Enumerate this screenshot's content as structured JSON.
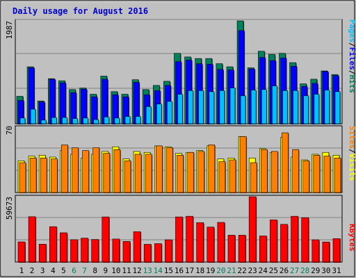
{
  "title": "Daily usage for August 2016",
  "colors": {
    "background": "#C0C0C0",
    "plot_bg": "#C0C0C0",
    "title": "#0000CC",
    "hits": "#00805C",
    "files": "#0000FF",
    "pages": "#00C0FF",
    "visits": "#FFFF00",
    "sites": "#FF8000",
    "kbytes": "#FF0000",
    "weekend_day": "#00805C",
    "weekday": "#000000"
  },
  "chart_data": [
    {
      "type": "bar",
      "name": "hits-files-pages",
      "max_label": "1987",
      "ylim": [
        0,
        1987
      ],
      "legend": [
        {
          "text": "Pages",
          "color": "#00C0FF"
        },
        {
          "text": "/",
          "color": "#000000"
        },
        {
          "text": "Files",
          "color": "#0000FF"
        },
        {
          "text": "/",
          "color": "#000000"
        },
        {
          "text": "Hits",
          "color": "#00805C"
        }
      ],
      "categories": [
        "1",
        "2",
        "3",
        "4",
        "5",
        "6",
        "7",
        "8",
        "9",
        "10",
        "11",
        "12",
        "13",
        "14",
        "15",
        "16",
        "17",
        "18",
        "19",
        "20",
        "21",
        "22",
        "23",
        "24",
        "25",
        "26",
        "27",
        "28",
        "29",
        "30",
        "31"
      ],
      "series": [
        {
          "name": "Hits",
          "values": [
            530,
            1100,
            440,
            870,
            830,
            660,
            690,
            570,
            920,
            620,
            570,
            850,
            660,
            740,
            820,
            1360,
            1290,
            1260,
            1260,
            1160,
            1100,
            1987,
            1080,
            1400,
            1340,
            1360,
            1180,
            770,
            860,
            1020,
            950
          ]
        },
        {
          "name": "Files",
          "values": [
            450,
            1080,
            420,
            860,
            790,
            600,
            670,
            520,
            860,
            560,
            520,
            800,
            560,
            640,
            740,
            1200,
            1230,
            1160,
            1150,
            1050,
            1040,
            1800,
            1060,
            1280,
            1220,
            1270,
            1110,
            720,
            780,
            1010,
            930
          ]
        },
        {
          "name": "Pages",
          "values": [
            110,
            280,
            70,
            120,
            120,
            100,
            110,
            80,
            130,
            110,
            140,
            140,
            330,
            380,
            430,
            570,
            640,
            640,
            620,
            640,
            690,
            540,
            650,
            660,
            730,
            640,
            640,
            540,
            570,
            650,
            620
          ]
        }
      ]
    },
    {
      "type": "bar",
      "name": "visits-sites",
      "max_label": "70",
      "ylim": [
        0,
        70
      ],
      "legend": [
        {
          "text": "Sites",
          "color": "#FF8000"
        },
        {
          "text": "/",
          "color": "#000000"
        },
        {
          "text": "Visits",
          "color": "#FFFF00"
        }
      ],
      "categories": [
        "1",
        "2",
        "3",
        "4",
        "5",
        "6",
        "7",
        "8",
        "9",
        "10",
        "11",
        "12",
        "13",
        "14",
        "15",
        "16",
        "17",
        "18",
        "19",
        "20",
        "21",
        "22",
        "23",
        "24",
        "25",
        "26",
        "27",
        "28",
        "29",
        "30",
        "31"
      ],
      "series": [
        {
          "name": "Visits",
          "values": [
            34,
            39,
            40,
            38,
            45,
            41,
            37,
            41,
            44,
            49,
            36,
            44,
            43,
            50,
            49,
            42,
            43,
            45,
            50,
            36,
            37,
            60,
            37,
            47,
            43,
            59,
            38,
            35,
            41,
            43,
            40
          ]
        },
        {
          "name": "Sites",
          "values": [
            32,
            37,
            37,
            36,
            51,
            48,
            45,
            48,
            42,
            46,
            34,
            41,
            41,
            50,
            48,
            40,
            43,
            44,
            51,
            33,
            35,
            60,
            32,
            46,
            44,
            64,
            46,
            34,
            40,
            39,
            37
          ]
        }
      ]
    },
    {
      "type": "bar",
      "name": "kbytes",
      "max_label": "59673",
      "ylim": [
        0,
        59673
      ],
      "legend": [
        {
          "text": "KBytes",
          "color": "#FF0000"
        }
      ],
      "categories": [
        "1",
        "2",
        "3",
        "4",
        "5",
        "6",
        "7",
        "8",
        "9",
        "10",
        "11",
        "12",
        "13",
        "14",
        "15",
        "16",
        "17",
        "18",
        "19",
        "20",
        "21",
        "22",
        "23",
        "24",
        "25",
        "26",
        "27",
        "28",
        "29",
        "30",
        "31"
      ],
      "series": [
        {
          "name": "KBytes",
          "values": [
            18400,
            41400,
            16300,
            32300,
            26700,
            20400,
            21800,
            20600,
            41200,
            21000,
            18800,
            27700,
            16200,
            16800,
            20300,
            41200,
            41800,
            36000,
            31900,
            36200,
            24500,
            24500,
            59673,
            23800,
            38500,
            34400,
            41800,
            40500,
            20300,
            18300,
            21400
          ]
        }
      ]
    }
  ],
  "days": [
    {
      "label": "1",
      "weekend": false
    },
    {
      "label": "2",
      "weekend": false
    },
    {
      "label": "3",
      "weekend": false
    },
    {
      "label": "4",
      "weekend": false
    },
    {
      "label": "5",
      "weekend": false
    },
    {
      "label": "6",
      "weekend": true
    },
    {
      "label": "7",
      "weekend": true
    },
    {
      "label": "8",
      "weekend": false
    },
    {
      "label": "9",
      "weekend": false
    },
    {
      "label": "10",
      "weekend": false
    },
    {
      "label": "11",
      "weekend": false
    },
    {
      "label": "12",
      "weekend": false
    },
    {
      "label": "13",
      "weekend": true
    },
    {
      "label": "14",
      "weekend": true
    },
    {
      "label": "15",
      "weekend": false
    },
    {
      "label": "16",
      "weekend": false
    },
    {
      "label": "17",
      "weekend": false
    },
    {
      "label": "18",
      "weekend": false
    },
    {
      "label": "19",
      "weekend": false
    },
    {
      "label": "20",
      "weekend": true
    },
    {
      "label": "21",
      "weekend": true
    },
    {
      "label": "22",
      "weekend": false
    },
    {
      "label": "23",
      "weekend": false
    },
    {
      "label": "24",
      "weekend": false
    },
    {
      "label": "25",
      "weekend": false
    },
    {
      "label": "26",
      "weekend": false
    },
    {
      "label": "27",
      "weekend": true
    },
    {
      "label": "28",
      "weekend": true
    },
    {
      "label": "29",
      "weekend": false
    },
    {
      "label": "30",
      "weekend": false
    },
    {
      "label": "31",
      "weekend": false
    }
  ]
}
